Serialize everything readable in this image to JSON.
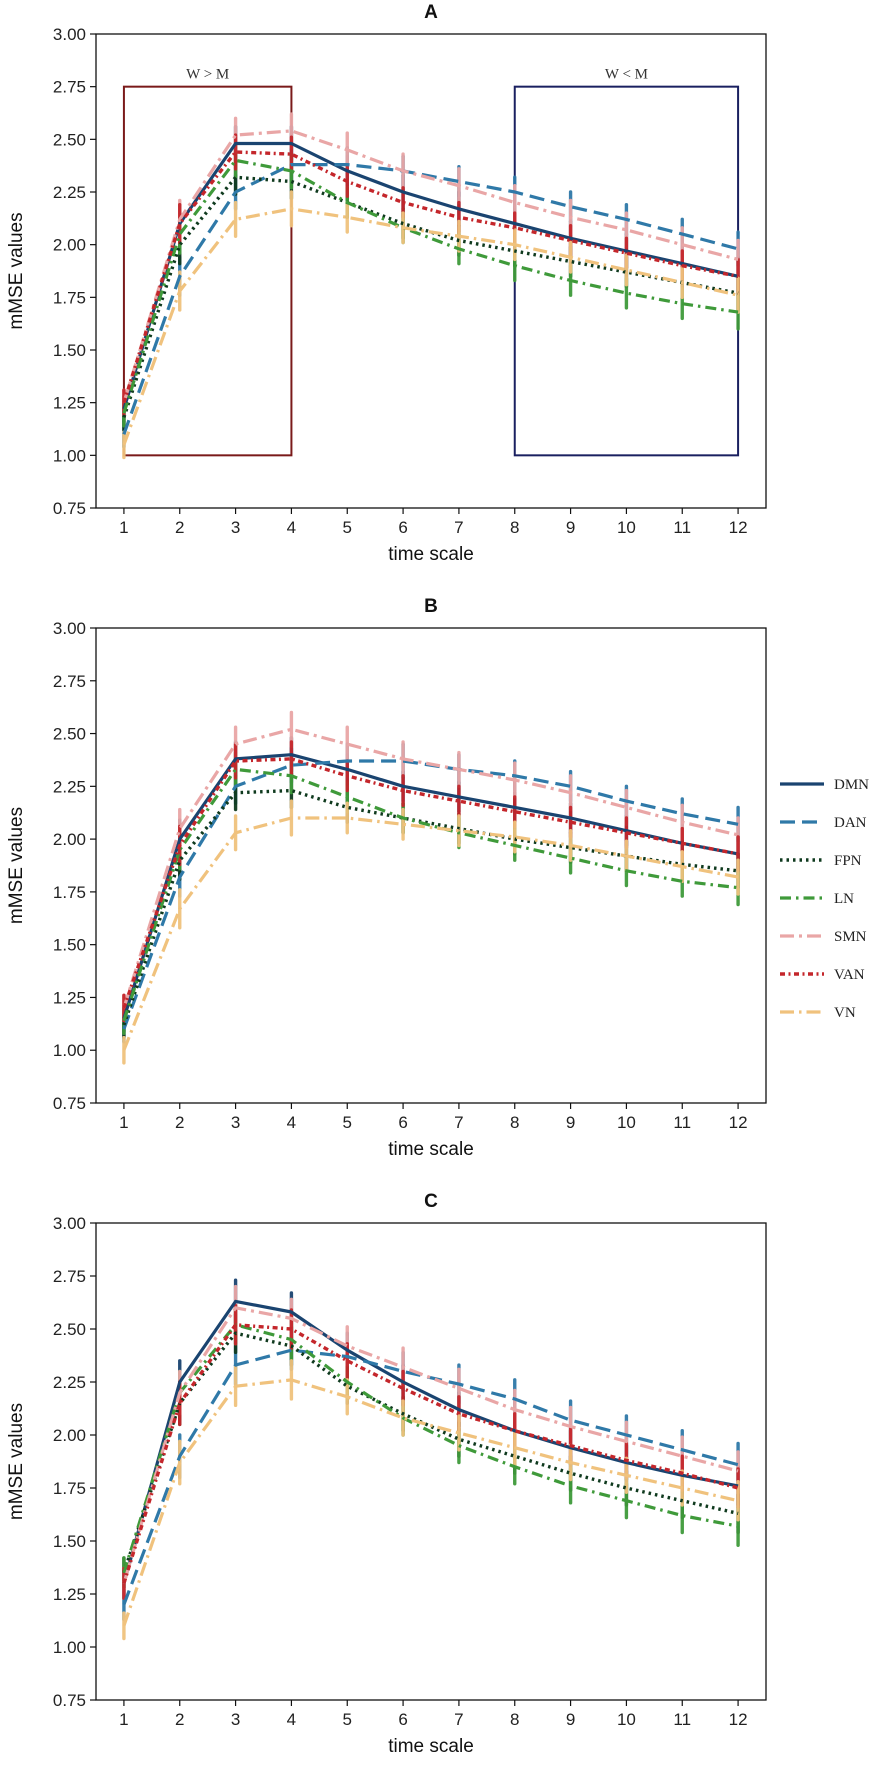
{
  "colors": {
    "DMN": "#1a4470",
    "DAN": "#2f79a8",
    "FPN": "#0f3a1e",
    "LN": "#3f9a3a",
    "SMN": "#e9a6a6",
    "VAN": "#c4262b",
    "VN": "#f0c27d",
    "box_wm_gt": "#7a1a1a",
    "box_wm_lt": "#1a2060"
  },
  "legend": [
    "DMN",
    "DAN",
    "FPN",
    "LN",
    "SMN",
    "VAN",
    "VN"
  ],
  "chart_data": [
    {
      "type": "line",
      "title": "A",
      "xlabel": "time scale",
      "ylabel": "mMSE values",
      "ylim": [
        0.75,
        3.0
      ],
      "xlim": [
        0.5,
        12.5
      ],
      "x": [
        1,
        2,
        3,
        4,
        5,
        6,
        7,
        8,
        9,
        10,
        11,
        12
      ],
      "yticks": [
        "0.75",
        "1.00",
        "1.25",
        "1.50",
        "1.75",
        "2.00",
        "2.25",
        "2.50",
        "2.75",
        "3.00"
      ],
      "xticks": [
        "1",
        "2",
        "3",
        "4",
        "5",
        "6",
        "7",
        "8",
        "9",
        "10",
        "11",
        "12"
      ],
      "annotations": [
        {
          "label": "W > M",
          "x_range": [
            1,
            4
          ],
          "y_range": [
            1.0,
            2.75
          ],
          "color": "box_wm_gt"
        },
        {
          "label": "W < M",
          "x_range": [
            8,
            12
          ],
          "y_range": [
            1.0,
            2.75
          ],
          "color": "box_wm_lt"
        }
      ],
      "series": [
        {
          "name": "DMN",
          "values": [
            1.22,
            2.1,
            2.48,
            2.48,
            2.35,
            2.25,
            2.17,
            2.1,
            2.03,
            1.97,
            1.91,
            1.85
          ],
          "error": [
            0.06,
            0.09,
            0.08,
            0.08,
            0.07,
            0.08,
            0.08,
            0.08,
            0.08,
            0.08,
            0.08,
            0.09
          ]
        },
        {
          "name": "DAN",
          "values": [
            1.1,
            1.85,
            2.25,
            2.38,
            2.38,
            2.35,
            2.3,
            2.25,
            2.18,
            2.12,
            2.05,
            1.98
          ],
          "error": [
            0.06,
            0.09,
            0.08,
            0.08,
            0.08,
            0.07,
            0.07,
            0.07,
            0.07,
            0.07,
            0.07,
            0.08
          ]
        },
        {
          "name": "FPN",
          "values": [
            1.18,
            2.0,
            2.32,
            2.3,
            2.2,
            2.1,
            2.02,
            1.97,
            1.92,
            1.87,
            1.82,
            1.77
          ],
          "error": [
            0.06,
            0.09,
            0.08,
            0.08,
            0.07,
            0.07,
            0.07,
            0.07,
            0.07,
            0.07,
            0.07,
            0.08
          ]
        },
        {
          "name": "LN",
          "values": [
            1.2,
            2.05,
            2.4,
            2.35,
            2.2,
            2.08,
            1.98,
            1.9,
            1.83,
            1.77,
            1.72,
            1.68
          ],
          "error": [
            0.06,
            0.09,
            0.08,
            0.08,
            0.07,
            0.07,
            0.07,
            0.07,
            0.07,
            0.07,
            0.07,
            0.08
          ]
        },
        {
          "name": "SMN",
          "values": [
            1.25,
            2.12,
            2.52,
            2.54,
            2.45,
            2.35,
            2.28,
            2.2,
            2.13,
            2.07,
            2.0,
            1.93
          ],
          "error": [
            0.06,
            0.09,
            0.08,
            0.08,
            0.08,
            0.08,
            0.08,
            0.08,
            0.08,
            0.08,
            0.08,
            0.09
          ]
        },
        {
          "name": "VAN",
          "values": [
            1.25,
            2.1,
            2.44,
            2.43,
            2.3,
            2.2,
            2.13,
            2.08,
            2.02,
            1.96,
            1.9,
            1.85
          ],
          "error": [
            0.06,
            0.09,
            0.08,
            0.08,
            0.07,
            0.07,
            0.07,
            0.07,
            0.07,
            0.07,
            0.07,
            0.08
          ]
        },
        {
          "name": "VN",
          "values": [
            1.05,
            1.78,
            2.12,
            2.17,
            2.13,
            2.08,
            2.04,
            2.0,
            1.94,
            1.88,
            1.82,
            1.76
          ],
          "error": [
            0.06,
            0.09,
            0.08,
            0.08,
            0.07,
            0.07,
            0.07,
            0.07,
            0.07,
            0.07,
            0.07,
            0.08
          ]
        }
      ]
    },
    {
      "type": "line",
      "title": "B",
      "xlabel": "time scale",
      "ylabel": "mMSE values",
      "ylim": [
        0.75,
        3.0
      ],
      "xlim": [
        0.5,
        12.5
      ],
      "x": [
        1,
        2,
        3,
        4,
        5,
        6,
        7,
        8,
        9,
        10,
        11,
        12
      ],
      "yticks": [
        "0.75",
        "1.00",
        "1.25",
        "1.50",
        "1.75",
        "2.00",
        "2.25",
        "2.50",
        "2.75",
        "3.00"
      ],
      "xticks": [
        "1",
        "2",
        "3",
        "4",
        "5",
        "6",
        "7",
        "8",
        "9",
        "10",
        "11",
        "12"
      ],
      "series": [
        {
          "name": "DMN",
          "values": [
            1.15,
            2.0,
            2.38,
            2.4,
            2.33,
            2.25,
            2.2,
            2.15,
            2.1,
            2.04,
            1.98,
            1.93
          ],
          "error": [
            0.06,
            0.09,
            0.08,
            0.08,
            0.07,
            0.07,
            0.07,
            0.07,
            0.07,
            0.07,
            0.07,
            0.08
          ]
        },
        {
          "name": "DAN",
          "values": [
            1.1,
            1.82,
            2.25,
            2.35,
            2.37,
            2.37,
            2.33,
            2.3,
            2.25,
            2.18,
            2.12,
            2.07
          ],
          "error": [
            0.06,
            0.09,
            0.08,
            0.08,
            0.08,
            0.08,
            0.07,
            0.07,
            0.07,
            0.07,
            0.07,
            0.08
          ]
        },
        {
          "name": "FPN",
          "values": [
            1.12,
            1.9,
            2.22,
            2.23,
            2.15,
            2.1,
            2.05,
            2.0,
            1.96,
            1.92,
            1.88,
            1.85
          ],
          "error": [
            0.06,
            0.09,
            0.08,
            0.08,
            0.07,
            0.07,
            0.07,
            0.07,
            0.07,
            0.07,
            0.07,
            0.08
          ]
        },
        {
          "name": "LN",
          "values": [
            1.14,
            1.95,
            2.33,
            2.3,
            2.2,
            2.1,
            2.03,
            1.97,
            1.91,
            1.85,
            1.8,
            1.77
          ],
          "error": [
            0.06,
            0.09,
            0.08,
            0.08,
            0.07,
            0.07,
            0.07,
            0.07,
            0.07,
            0.07,
            0.07,
            0.08
          ]
        },
        {
          "name": "SMN",
          "values": [
            1.2,
            2.05,
            2.45,
            2.52,
            2.45,
            2.38,
            2.33,
            2.28,
            2.22,
            2.15,
            2.08,
            2.02
          ],
          "error": [
            0.06,
            0.09,
            0.08,
            0.08,
            0.08,
            0.08,
            0.08,
            0.08,
            0.08,
            0.08,
            0.08,
            0.08
          ]
        },
        {
          "name": "VAN",
          "values": [
            1.2,
            1.97,
            2.37,
            2.38,
            2.3,
            2.23,
            2.18,
            2.13,
            2.08,
            2.03,
            1.98,
            1.93
          ],
          "error": [
            0.06,
            0.09,
            0.08,
            0.08,
            0.07,
            0.07,
            0.07,
            0.07,
            0.07,
            0.07,
            0.07,
            0.08
          ]
        },
        {
          "name": "VN",
          "values": [
            1.0,
            1.67,
            2.03,
            2.1,
            2.1,
            2.07,
            2.04,
            2.01,
            1.97,
            1.92,
            1.87,
            1.82
          ],
          "error": [
            0.06,
            0.09,
            0.08,
            0.08,
            0.07,
            0.07,
            0.07,
            0.07,
            0.07,
            0.07,
            0.07,
            0.08
          ]
        }
      ]
    },
    {
      "type": "line",
      "title": "C",
      "xlabel": "time scale",
      "ylabel": "mMSE values",
      "ylim": [
        0.75,
        3.0
      ],
      "xlim": [
        0.5,
        12.5
      ],
      "x": [
        1,
        2,
        3,
        4,
        5,
        6,
        7,
        8,
        9,
        10,
        11,
        12
      ],
      "yticks": [
        "0.75",
        "1.00",
        "1.25",
        "1.50",
        "1.75",
        "2.00",
        "2.25",
        "2.50",
        "2.75",
        "3.00"
      ],
      "xticks": [
        "1",
        "2",
        "3",
        "4",
        "5",
        "6",
        "7",
        "8",
        "9",
        "10",
        "11",
        "12"
      ],
      "series": [
        {
          "name": "DMN",
          "values": [
            1.3,
            2.25,
            2.63,
            2.58,
            2.4,
            2.25,
            2.12,
            2.02,
            1.94,
            1.87,
            1.81,
            1.76
          ],
          "error": [
            0.07,
            0.1,
            0.1,
            0.09,
            0.08,
            0.08,
            0.08,
            0.08,
            0.08,
            0.08,
            0.08,
            0.09
          ]
        },
        {
          "name": "DAN",
          "values": [
            1.2,
            1.9,
            2.33,
            2.4,
            2.37,
            2.3,
            2.24,
            2.17,
            2.07,
            2.0,
            1.93,
            1.86
          ],
          "error": [
            0.07,
            0.1,
            0.09,
            0.09,
            0.09,
            0.09,
            0.09,
            0.09,
            0.09,
            0.09,
            0.09,
            0.1
          ]
        },
        {
          "name": "FPN",
          "values": [
            1.35,
            2.15,
            2.48,
            2.42,
            2.23,
            2.1,
            1.98,
            1.9,
            1.82,
            1.75,
            1.69,
            1.63
          ],
          "error": [
            0.07,
            0.1,
            0.09,
            0.09,
            0.08,
            0.08,
            0.08,
            0.08,
            0.08,
            0.08,
            0.08,
            0.09
          ]
        },
        {
          "name": "LN",
          "values": [
            1.35,
            2.2,
            2.52,
            2.45,
            2.25,
            2.08,
            1.95,
            1.85,
            1.76,
            1.69,
            1.62,
            1.57
          ],
          "error": [
            0.07,
            0.1,
            0.09,
            0.09,
            0.08,
            0.08,
            0.08,
            0.08,
            0.08,
            0.08,
            0.08,
            0.09
          ]
        },
        {
          "name": "SMN",
          "values": [
            1.3,
            2.2,
            2.6,
            2.55,
            2.42,
            2.32,
            2.22,
            2.12,
            2.04,
            1.97,
            1.9,
            1.83
          ],
          "error": [
            0.07,
            0.1,
            0.1,
            0.09,
            0.09,
            0.09,
            0.09,
            0.09,
            0.09,
            0.09,
            0.09,
            0.09
          ]
        },
        {
          "name": "VAN",
          "values": [
            1.3,
            2.15,
            2.52,
            2.5,
            2.35,
            2.22,
            2.1,
            2.02,
            1.95,
            1.88,
            1.82,
            1.75
          ],
          "error": [
            0.07,
            0.1,
            0.09,
            0.09,
            0.08,
            0.08,
            0.08,
            0.08,
            0.08,
            0.08,
            0.08,
            0.09
          ]
        },
        {
          "name": "VN",
          "values": [
            1.1,
            1.87,
            2.23,
            2.26,
            2.18,
            2.08,
            2.01,
            1.94,
            1.87,
            1.81,
            1.75,
            1.69
          ],
          "error": [
            0.06,
            0.1,
            0.09,
            0.09,
            0.08,
            0.08,
            0.08,
            0.08,
            0.08,
            0.08,
            0.08,
            0.09
          ]
        }
      ]
    }
  ]
}
